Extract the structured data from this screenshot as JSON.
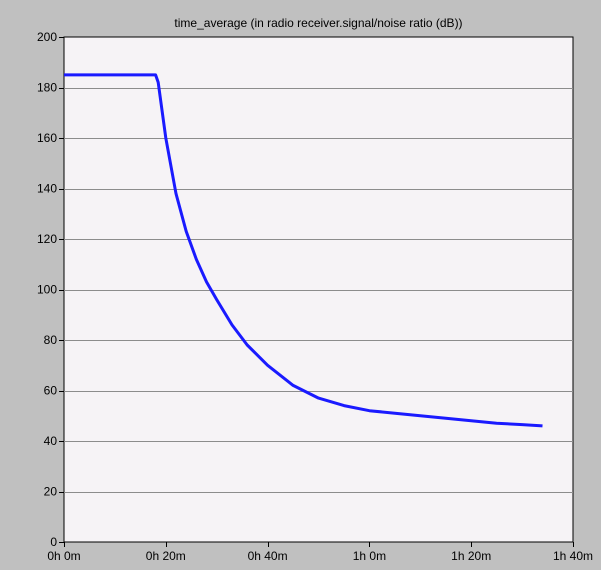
{
  "chart_data": {
    "type": "line",
    "title": "time_average (in radio receiver.signal/noise ratio (dB))",
    "xlabel": "",
    "ylabel": "",
    "x_unit": "minutes",
    "xlim": [
      0,
      100
    ],
    "ylim": [
      0,
      200
    ],
    "x_ticks": [
      0,
      20,
      40,
      60,
      80,
      100
    ],
    "x_tick_labels": [
      "0h 0m",
      "0h 20m",
      "0h 40m",
      "1h 0m",
      "1h 20m",
      "1h 40m"
    ],
    "y_ticks": [
      0,
      20,
      40,
      60,
      80,
      100,
      120,
      140,
      160,
      180,
      200
    ],
    "y_tick_labels": [
      "0",
      "20",
      "40",
      "60",
      "80",
      "100",
      "120",
      "140",
      "160",
      "180",
      "200"
    ],
    "grid": "horizontal",
    "legend": "none",
    "series": [
      {
        "color": "#1a1aff",
        "x": [
          0,
          18,
          18.5,
          20,
          22,
          24,
          26,
          28,
          30,
          33,
          36,
          40,
          45,
          50,
          55,
          60,
          65,
          70,
          75,
          80,
          85,
          90,
          94
        ],
        "y": [
          185,
          185,
          182,
          160,
          138,
          123,
          112,
          103,
          96,
          86,
          78,
          70,
          62,
          57,
          54,
          52,
          51,
          50,
          49,
          48,
          47,
          46.5,
          46
        ]
      }
    ]
  }
}
